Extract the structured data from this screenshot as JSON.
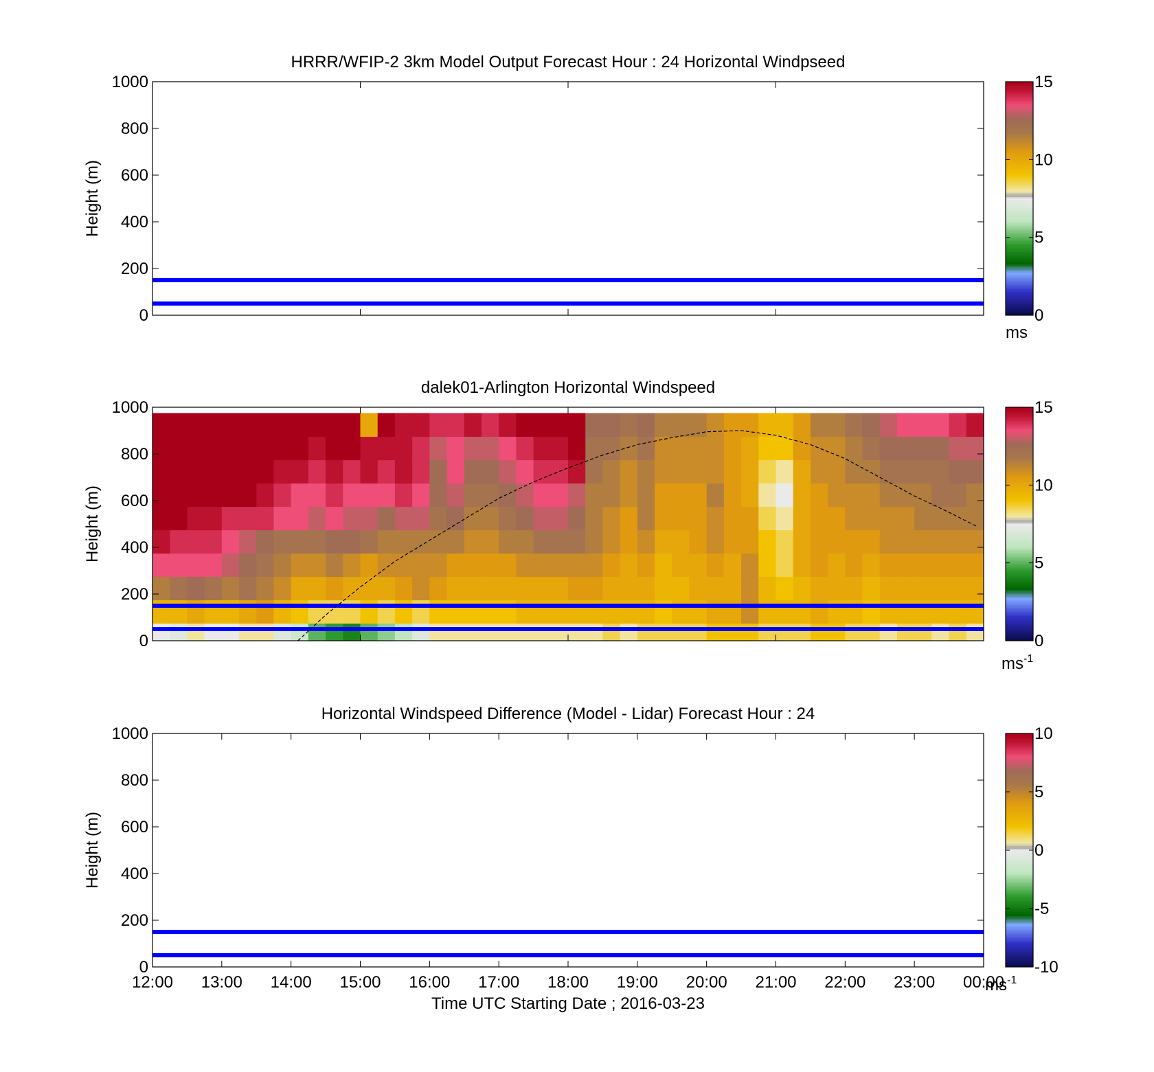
{
  "figure": {
    "background": "#ffffff",
    "xaxis_label": "Time UTC  Starting Date ; 2016-03-23",
    "x_tick_labels": [
      "12:00",
      "13:00",
      "14:00",
      "15:00",
      "16:00",
      "17:00",
      "18:00",
      "19:00",
      "20:00",
      "21:00",
      "22:00",
      "23:00",
      "00:00"
    ]
  },
  "reference_lines": {
    "heights_m": [
      50,
      150
    ],
    "color": "#0000ff"
  },
  "colormaps": {
    "speed": {
      "stops": [
        [
          0.0,
          "#0a0a4a"
        ],
        [
          0.1,
          "#3030c8"
        ],
        [
          0.18,
          "#80a8ff"
        ],
        [
          0.22,
          "#006400"
        ],
        [
          0.3,
          "#2c9a2c"
        ],
        [
          0.4,
          "#bfe6bf"
        ],
        [
          0.5,
          "#eaeaea"
        ],
        [
          0.51,
          "#a8a8a8"
        ],
        [
          0.53,
          "#f2e6a6"
        ],
        [
          0.6,
          "#f2c200"
        ],
        [
          0.7,
          "#e09a10"
        ],
        [
          0.78,
          "#a8784a"
        ],
        [
          0.84,
          "#a06a58"
        ],
        [
          0.9,
          "#ee4e78"
        ],
        [
          0.96,
          "#c01434"
        ],
        [
          1.0,
          "#a80018"
        ]
      ]
    }
  },
  "chart_data": [
    {
      "id": "model",
      "type": "heatmap",
      "title": "HRRR/WFIP-2 3km Model Output   Forecast Hour : 24 Horizontal Windpseed",
      "xlabel": "",
      "ylabel": "Height (m)",
      "xlim": [
        12,
        24
      ],
      "ylim": [
        0,
        1000
      ],
      "y_ticks": [
        0,
        200,
        400,
        600,
        800,
        1000
      ],
      "x_ticks": [
        12,
        15,
        18,
        21,
        24
      ],
      "x_tick_labels_visible": false,
      "colorbar": {
        "range": [
          0,
          15
        ],
        "ticks": [
          0,
          5,
          10,
          15
        ],
        "unit": "ms",
        "unit_sup": ""
      },
      "values": null
    },
    {
      "id": "lidar",
      "type": "heatmap",
      "title": "dalek01-Arlington  Horizontal Windspeed",
      "xlabel": "",
      "ylabel": "Height (m)",
      "xlim": [
        12,
        24
      ],
      "ylim": [
        0,
        1000
      ],
      "y_ticks": [
        0,
        200,
        400,
        600,
        800,
        1000
      ],
      "x_ticks": [
        12,
        15,
        18,
        21,
        24
      ],
      "x_tick_labels_visible": false,
      "colorbar": {
        "range": [
          0,
          15
        ],
        "ticks": [
          0,
          5,
          10,
          15
        ],
        "unit": "ms",
        "unit_sup": "-1"
      },
      "x_start_hours": [
        12.0,
        12.25,
        12.5,
        12.75,
        13.0,
        13.25,
        13.5,
        13.75,
        14.0,
        14.25,
        14.5,
        14.75,
        15.0,
        15.25,
        15.5,
        15.75,
        16.0,
        16.25,
        16.5,
        16.75,
        17.0,
        17.25,
        17.5,
        17.75,
        18.0,
        18.25,
        18.5,
        18.75,
        19.0,
        19.25,
        19.5,
        19.75,
        20.0,
        20.25,
        20.5,
        20.75,
        21.0,
        21.25,
        21.5,
        21.75,
        22.0,
        22.25,
        22.5,
        22.75,
        23.0,
        23.25,
        23.5,
        23.75
      ],
      "profile_heights_m": [
        25,
        125,
        225,
        325,
        425,
        525,
        625,
        725,
        825,
        925
      ],
      "speed_profiles_ms": [
        [
          7.5,
          9.5,
          11.5,
          13.5,
          14.5,
          15,
          15,
          15,
          15,
          15
        ],
        [
          7,
          9.5,
          12,
          13.5,
          14,
          15,
          15,
          15,
          15,
          15
        ],
        [
          8,
          10,
          12.5,
          13.5,
          14,
          14.5,
          15,
          15,
          15,
          15
        ],
        [
          7.5,
          9.5,
          12,
          13.5,
          14,
          14.5,
          15,
          15,
          15,
          15
        ],
        [
          7.5,
          9.5,
          11.5,
          13,
          13.5,
          14,
          15,
          15,
          15,
          15
        ],
        [
          8,
          10,
          12,
          12.5,
          13,
          14,
          15,
          15,
          15,
          15
        ],
        [
          8,
          10.5,
          11.5,
          12,
          12.5,
          14,
          14.5,
          15,
          15,
          15
        ],
        [
          7,
          9.5,
          11,
          11.5,
          12,
          13.5,
          14,
          14.5,
          15,
          15
        ],
        [
          6.5,
          9,
          10,
          11,
          12,
          13.5,
          13.5,
          14.5,
          15,
          15
        ],
        [
          5,
          8.5,
          10,
          11,
          12,
          13,
          13.5,
          14,
          14.5,
          15
        ],
        [
          4.5,
          8.5,
          10.5,
          11.5,
          12.5,
          13.5,
          14,
          14.5,
          15,
          15
        ],
        [
          4,
          8.5,
          10,
          11,
          12.5,
          13,
          13.5,
          14,
          15,
          15
        ],
        [
          5,
          9,
          10,
          10.5,
          12,
          13,
          13.5,
          14.5,
          14.5,
          10
        ],
        [
          5.5,
          8.5,
          10,
          11,
          11.5,
          12.5,
          13.5,
          14,
          14.5,
          15
        ],
        [
          6,
          9,
          10.5,
          11,
          11.5,
          13,
          14,
          14.5,
          14.5,
          14.5
        ],
        [
          7,
          8.5,
          11,
          11,
          11.5,
          13,
          13.5,
          14,
          14,
          14.5
        ],
        [
          8,
          9,
          10.5,
          11,
          11.5,
          12,
          12.5,
          12.5,
          13,
          14
        ],
        [
          8,
          9,
          10,
          10.5,
          11.5,
          12.5,
          13,
          13.5,
          13.5,
          14
        ],
        [
          8,
          9,
          10,
          10.5,
          11,
          11.5,
          12,
          12.5,
          13,
          14.5
        ],
        [
          8,
          9,
          10,
          10.5,
          11,
          11.5,
          12,
          12.5,
          13,
          14
        ],
        [
          8,
          9,
          10,
          10.5,
          11.5,
          12,
          12.5,
          13,
          13.5,
          14.5
        ],
        [
          8,
          9.5,
          10,
          11,
          11.5,
          12.5,
          13,
          13.5,
          14,
          15
        ],
        [
          8,
          9.5,
          10,
          11,
          12,
          13,
          13.5,
          14,
          14.5,
          15
        ],
        [
          8,
          9.5,
          10,
          11,
          12,
          13,
          13.5,
          14,
          14.5,
          15
        ],
        [
          8,
          9.5,
          10.5,
          11,
          12,
          12.5,
          13,
          14.5,
          15,
          15
        ],
        [
          8,
          9.5,
          10.5,
          11,
          11.5,
          11.5,
          11.5,
          12,
          12,
          12.5
        ],
        [
          8.5,
          9.5,
          10,
          10.5,
          11,
          11,
          11.5,
          11.5,
          12,
          12.5
        ],
        [
          8,
          9.5,
          10,
          10,
          10.5,
          10.5,
          11,
          11,
          11.5,
          12
        ],
        [
          8.5,
          9.5,
          10,
          10.5,
          11,
          11.5,
          11.5,
          11.5,
          12,
          12.5
        ],
        [
          8.5,
          9,
          9.5,
          9.5,
          10,
          10.5,
          10.5,
          11,
          11,
          11.5
        ],
        [
          8.5,
          9.5,
          9.5,
          10,
          10,
          10.5,
          10.5,
          11,
          11,
          11.5
        ],
        [
          8.5,
          9.5,
          10,
          10,
          10.5,
          10.5,
          10.5,
          11,
          11,
          11.5
        ],
        [
          9,
          10,
          10,
          10.5,
          11,
          11,
          11.5,
          11,
          11,
          11
        ],
        [
          9,
          10,
          10,
          10,
          10.5,
          10.5,
          10.5,
          10.5,
          10.5,
          10.5
        ],
        [
          9,
          11,
          11,
          11,
          10.5,
          10.5,
          10,
          10,
          10,
          10.5
        ],
        [
          8.5,
          9.5,
          9.5,
          9,
          9,
          8.5,
          8,
          8.5,
          9,
          9.5
        ],
        [
          8.5,
          9.5,
          9,
          8.5,
          8.5,
          8,
          7.5,
          8,
          9,
          9.5
        ],
        [
          8.5,
          9.5,
          9.5,
          10,
          10,
          10,
          10,
          10,
          10.5,
          10.5
        ],
        [
          9,
          10,
          10,
          10.5,
          10.5,
          10.5,
          10.5,
          11,
          11,
          11.5
        ],
        [
          9,
          9.5,
          10,
          10,
          10.5,
          10.5,
          11,
          11,
          11,
          11.5
        ],
        [
          8.5,
          9.5,
          10,
          10.5,
          10.5,
          11,
          11,
          11.5,
          11.5,
          12
        ],
        [
          8.5,
          9,
          9.5,
          10,
          10.5,
          11,
          11,
          11.5,
          12,
          12.5
        ],
        [
          8,
          9.5,
          10,
          10.5,
          11,
          11,
          11.5,
          12,
          12.5,
          13
        ],
        [
          8.5,
          9.5,
          10,
          10.5,
          11,
          11,
          11.5,
          12,
          12.5,
          13.5
        ],
        [
          8.5,
          9.5,
          10,
          10.5,
          11,
          11.5,
          11.5,
          12,
          12.5,
          13.5
        ],
        [
          8,
          9.5,
          10,
          10.5,
          11,
          11.5,
          12,
          12,
          12.5,
          13.5
        ],
        [
          8.5,
          9.5,
          10,
          10.5,
          11,
          11.5,
          12,
          12.5,
          13,
          14
        ],
        [
          8,
          9.5,
          10,
          10.5,
          11,
          11.5,
          11.5,
          12.5,
          13,
          14.5
        ]
      ],
      "dashed_curve": {
        "color": "#000000",
        "x_hours": [
          14.1,
          14.5,
          15,
          15.5,
          16,
          16.5,
          17,
          17.5,
          18,
          18.5,
          19,
          19.5,
          20,
          20.5,
          21,
          21.5,
          22,
          22.5,
          23,
          23.5,
          23.9
        ],
        "y_m": [
          0,
          110,
          230,
          340,
          430,
          520,
          610,
          680,
          740,
          795,
          840,
          870,
          895,
          900,
          880,
          840,
          780,
          700,
          620,
          550,
          490
        ]
      }
    },
    {
      "id": "difference",
      "type": "heatmap",
      "title": "Horizontal Windspeed Difference (Model - Lidar) Forecast Hour : 24",
      "xlabel": "Time UTC  Starting Date ; 2016-03-23",
      "ylabel": "Height (m)",
      "xlim": [
        12,
        24
      ],
      "ylim": [
        0,
        1000
      ],
      "y_ticks": [
        0,
        200,
        400,
        600,
        800,
        1000
      ],
      "x_ticks": [
        12,
        13,
        14,
        15,
        16,
        17,
        18,
        19,
        20,
        21,
        22,
        23,
        24
      ],
      "x_tick_labels_visible": true,
      "colorbar": {
        "range": [
          -10,
          10
        ],
        "ticks": [
          -10,
          -5,
          0,
          5,
          10
        ],
        "unit": "ms",
        "unit_sup": "-1"
      },
      "values": null
    }
  ]
}
